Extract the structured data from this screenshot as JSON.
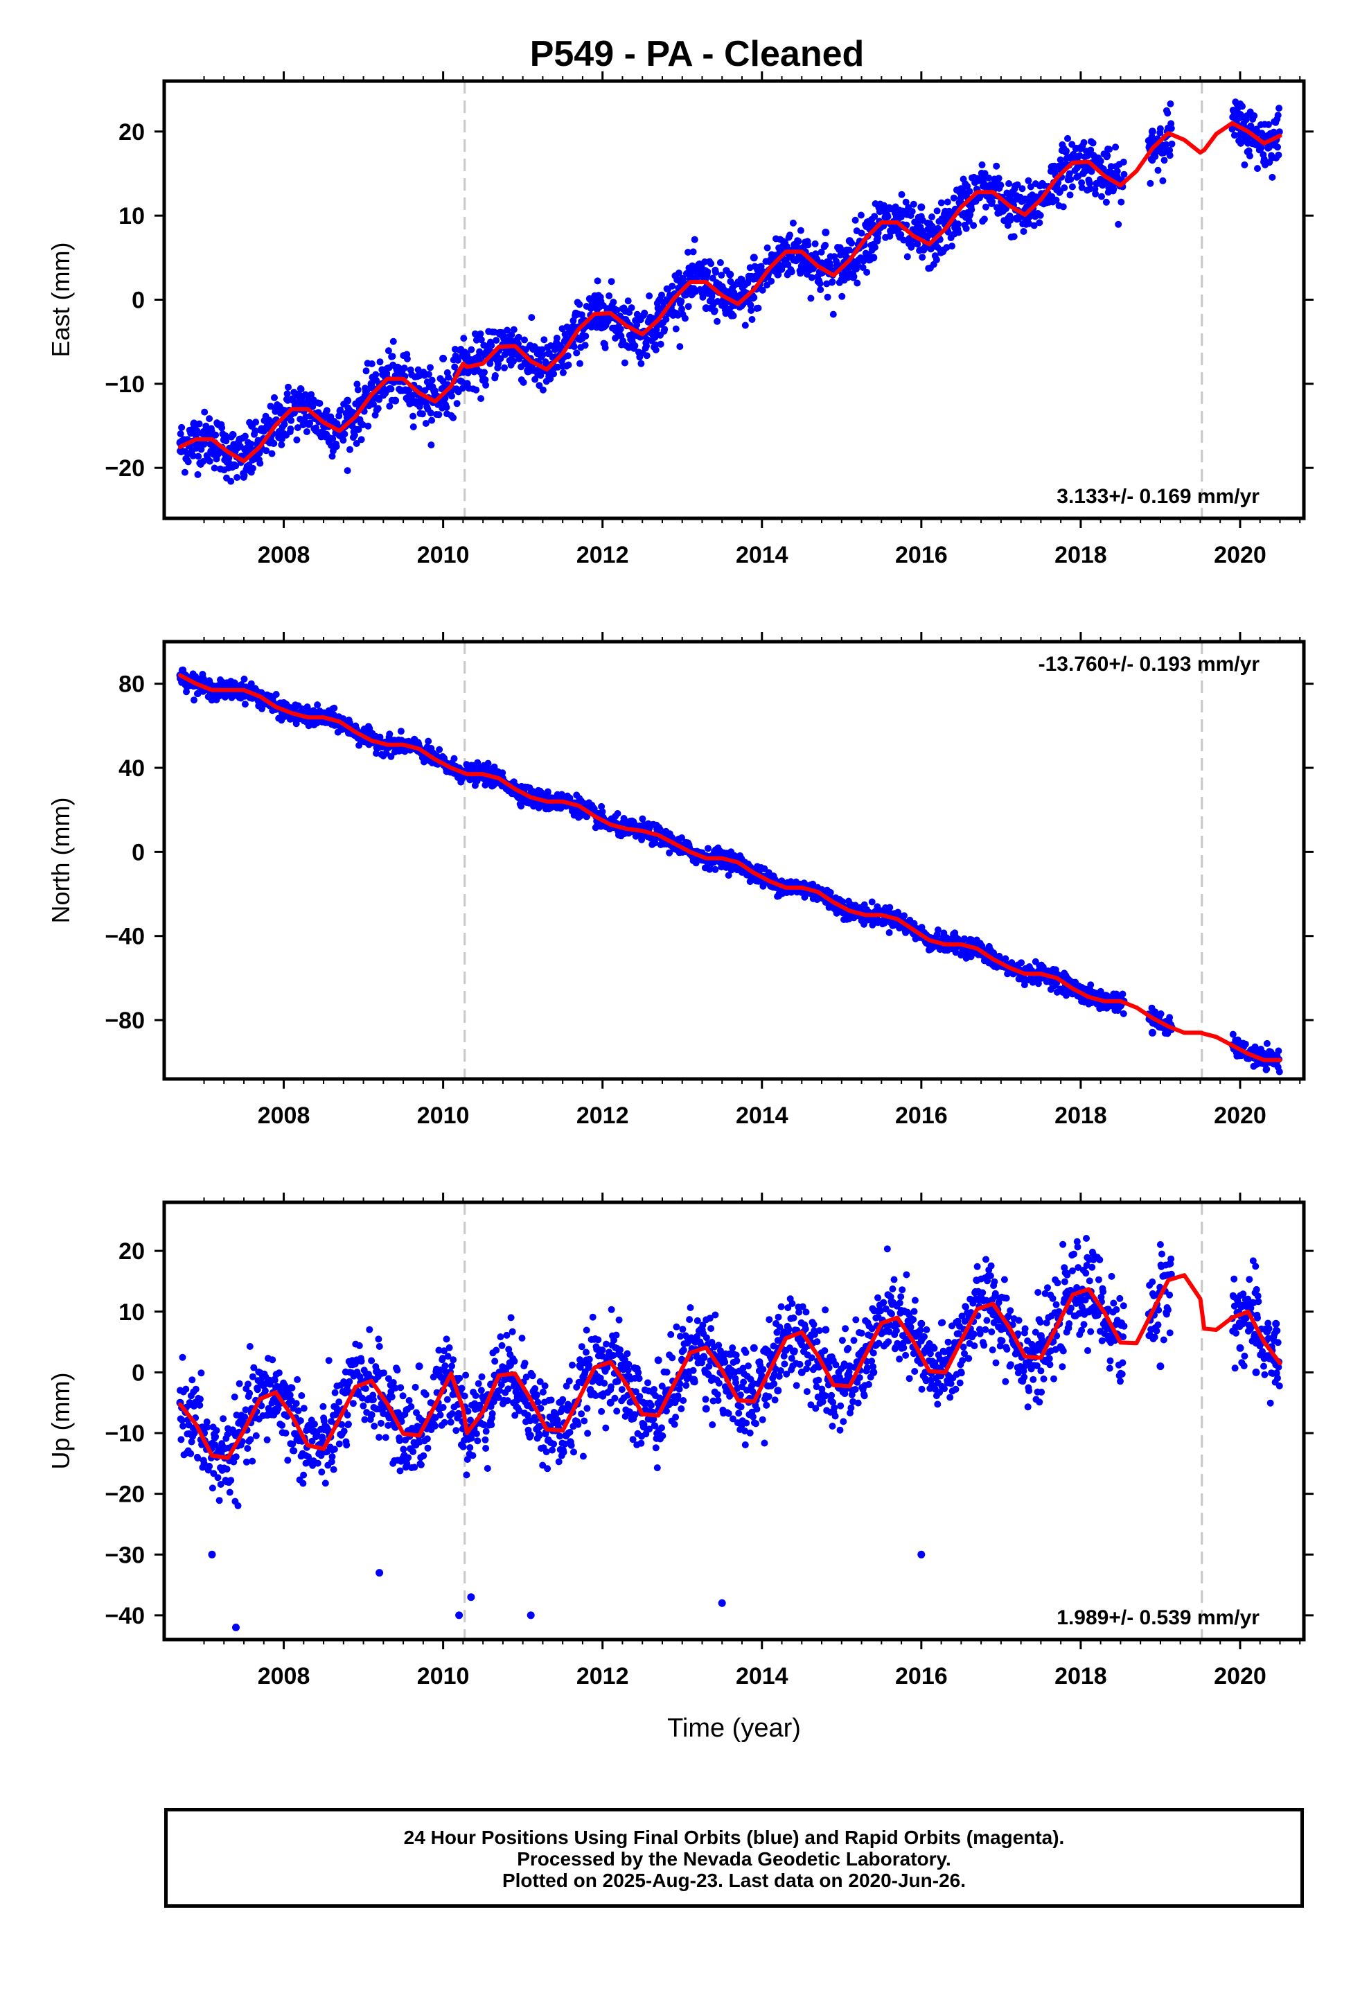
{
  "page_title": "P549  - PA - Cleaned",
  "footer": {
    "line1": "24 Hour Positions Using Final Orbits (blue) and Rapid Orbits (magenta).",
    "line2": "Processed by the Nevada Geodetic Laboratory.",
    "line3": "Plotted on 2025-Aug-23. Last data on 2020-Jun-26."
  },
  "colors": {
    "data_points": "#0000ff",
    "model_fit": "#ff0000",
    "equipment_change_lines": "#c8c8c8",
    "frame": "#000000"
  },
  "chart_data": [
    {
      "type": "scatter",
      "title": "P549  - PA - Cleaned",
      "ylabel": "East (mm)",
      "xlabel": "",
      "xlim": [
        2006.5,
        2020.8
      ],
      "ylim": [
        -26,
        26
      ],
      "x_ticks": [
        "2008",
        "2010",
        "2012",
        "2014",
        "2016",
        "2018",
        "2020"
      ],
      "y_ticks": [
        "20",
        "10",
        "0",
        "−10",
        "−20"
      ],
      "y_tick_values": [
        20,
        10,
        0,
        -10,
        -20
      ],
      "rate_label": "3.133+/- 0.169 mm/yr",
      "rate_label_position": "bottom-right",
      "vertical_dashed_lines_x": [
        2010.27,
        2019.52
      ],
      "series": [
        {
          "values": {
            "x": [
              2006.7,
              2007.0,
              2007.3,
              2007.6,
              2007.9,
              2008.2,
              2008.5,
              2008.8,
              2009.1,
              2009.4,
              2009.7,
              2010.0,
              2010.3,
              2010.6,
              2010.9,
              2011.2,
              2011.5,
              2011.8,
              2012.1,
              2012.4,
              2012.7,
              2013.0,
              2013.3,
              2013.6,
              2013.9,
              2014.2,
              2014.5,
              2014.8,
              2015.1,
              2015.4,
              2015.7,
              2016.0,
              2016.3,
              2016.6,
              2016.9,
              2017.2,
              2017.5,
              2017.8,
              2018.1,
              2018.4,
              2018.9,
              2020.0,
              2020.2,
              2020.45
            ],
            "y": [
              -17,
              -17,
              -19,
              -15,
              -13,
              -13,
              -16,
              -12,
              -10,
              -12,
              -9,
              -7,
              -10,
              -7,
              -5,
              -6,
              -6,
              -3,
              -2,
              -4,
              -1,
              1,
              -1,
              3,
              5,
              3,
              4,
              8,
              7,
              5,
              9,
              11,
              9,
              10,
              13,
              12,
              12,
              16,
              16,
              15,
              20,
              22,
              20,
              19
            ]
          }
        },
        {
          "name": "",
          "model": {
            "x": [
              2006.7,
              2006.9,
              2007.1,
              2007.3,
              2007.5,
              2007.7,
              2007.9,
              2008.1,
              2008.3,
              2008.5,
              2008.7,
              2008.9,
              2009.1,
              2009.3,
              2009.5,
              2009.7,
              2009.9,
              2010.1,
              2010.25,
              2010.3,
              2010.5,
              2010.7,
              2010.9,
              2011.1,
              2011.3,
              2011.5,
              2011.7,
              2011.9,
              2012.1,
              2012.3,
              2012.5,
              2012.7,
              2012.9,
              2013.1,
              2013.3,
              2013.5,
              2013.7,
              2013.9,
              2014.1,
              2014.3,
              2014.5,
              2014.7,
              2014.9,
              2015.1,
              2015.3,
              2015.5,
              2015.7,
              2015.9,
              2016.1,
              2016.3,
              2016.5,
              2016.7,
              2016.9,
              2017.1,
              2017.3,
              2017.5,
              2017.7,
              2017.9,
              2018.1,
              2018.3,
              2018.5,
              2018.7,
              2018.9,
              2019.1,
              2019.3,
              2019.5,
              2019.55,
              2019.7,
              2019.9,
              2020.1,
              2020.3,
              2020.5
            ],
            "y": [
              -17.5,
              -16.6,
              -16.6,
              -18.1,
              -19.2,
              -17.5,
              -14.9,
              -13.0,
              -13.0,
              -14.6,
              -15.6,
              -13.9,
              -11.3,
              -9.4,
              -9.4,
              -11.1,
              -12.1,
              -10.3,
              -7.6,
              -8.0,
              -7.6,
              -5.6,
              -5.5,
              -7.3,
              -8.3,
              -6.4,
              -3.5,
              -1.7,
              -1.6,
              -3.1,
              -4.1,
              -2.4,
              0.2,
              2.1,
              2.1,
              0.5,
              -0.5,
              1.2,
              3.8,
              5.7,
              5.7,
              4.0,
              2.9,
              4.7,
              7.3,
              9.2,
              9.2,
              7.6,
              6.6,
              8.4,
              11.0,
              12.8,
              12.8,
              11.2,
              10.1,
              11.9,
              14.5,
              16.3,
              16.4,
              14.7,
              13.6,
              15.3,
              18.0,
              19.8,
              19.0,
              17.5,
              17.8,
              19.7,
              21.0,
              20.0,
              18.6,
              19.5
            ]
          }
        }
      ]
    },
    {
      "type": "scatter",
      "ylabel": "North (mm)",
      "xlabel": "",
      "xlim": [
        2006.5,
        2020.8
      ],
      "ylim": [
        -108,
        100
      ],
      "x_ticks": [
        "2008",
        "2010",
        "2012",
        "2014",
        "2016",
        "2018",
        "2020"
      ],
      "y_ticks": [
        "80",
        "40",
        "0",
        "−40",
        "−80"
      ],
      "y_tick_values": [
        80,
        40,
        0,
        -40,
        -80
      ],
      "rate_label": "-13.760+/- 0.193 mm/yr",
      "rate_label_position": "top-right",
      "vertical_dashed_lines_x": [
        2010.27,
        2019.52
      ],
      "series": [
        {
          "values": {
            "x": [
              2006.7,
              2007.0,
              2007.3,
              2007.6,
              2007.9,
              2008.2,
              2008.5,
              2008.8,
              2009.1,
              2009.4,
              2009.7,
              2010.0,
              2010.3,
              2010.6,
              2010.9,
              2011.2,
              2011.5,
              2011.8,
              2012.1,
              2012.4,
              2012.7,
              2013.0,
              2013.3,
              2013.6,
              2013.9,
              2014.2,
              2014.5,
              2014.8,
              2015.1,
              2015.4,
              2015.7,
              2016.0,
              2016.3,
              2016.6,
              2016.9,
              2017.2,
              2017.5,
              2017.8,
              2018.1,
              2018.4,
              2018.9,
              2020.0,
              2020.2,
              2020.45
            ],
            "y": [
              84,
              80,
              78,
              76,
              70,
              65,
              63,
              58,
              52,
              51,
              48,
              42,
              37,
              34,
              28,
              24,
              22,
              17,
              12,
              11,
              7,
              0,
              -2,
              -5,
              -10,
              -17,
              -18,
              -22,
              -28,
              -32,
              -34,
              -40,
              -44,
              -46,
              -52,
              -57,
              -58,
              -65,
              -71,
              -73,
              -86,
              -92,
              -97,
              -97
            ]
          }
        },
        {
          "name": "",
          "model": {
            "x": [
              2006.7,
              2006.9,
              2007.1,
              2007.3,
              2007.5,
              2007.7,
              2007.9,
              2008.1,
              2008.3,
              2008.5,
              2008.7,
              2008.9,
              2009.1,
              2009.3,
              2009.5,
              2009.7,
              2009.9,
              2010.1,
              2010.3,
              2010.5,
              2010.7,
              2010.9,
              2011.1,
              2011.3,
              2011.5,
              2011.7,
              2011.9,
              2012.1,
              2012.3,
              2012.5,
              2012.7,
              2012.9,
              2013.1,
              2013.3,
              2013.5,
              2013.7,
              2013.9,
              2014.1,
              2014.3,
              2014.5,
              2014.7,
              2014.9,
              2015.1,
              2015.3,
              2015.5,
              2015.7,
              2015.9,
              2016.1,
              2016.3,
              2016.5,
              2016.7,
              2016.9,
              2017.1,
              2017.3,
              2017.5,
              2017.7,
              2017.9,
              2018.1,
              2018.3,
              2018.5,
              2018.7,
              2018.9,
              2019.1,
              2019.3,
              2019.5,
              2019.7,
              2019.9,
              2020.1,
              2020.3,
              2020.5
            ],
            "y": [
              84,
              80,
              77,
              77,
              77,
              74,
              69,
              66,
              64,
              64,
              62,
              57,
              53,
              51,
              51,
              49,
              44,
              40,
              37,
              37,
              35,
              30,
              26,
              24,
              24,
              22,
              17,
              13,
              11,
              10,
              8,
              4,
              0,
              -3,
              -3,
              -5,
              -10,
              -14,
              -17,
              -17,
              -19,
              -24,
              -28,
              -30,
              -30,
              -32,
              -37,
              -42,
              -44,
              -44,
              -46,
              -51,
              -55,
              -58,
              -58,
              -60,
              -65,
              -69,
              -71,
              -71,
              -74,
              -79,
              -83,
              -86,
              -86,
              -88,
              -92,
              -96,
              -99,
              -99
            ]
          }
        }
      ]
    },
    {
      "type": "scatter",
      "ylabel": "Up (mm)",
      "xlabel": "Time (year)",
      "xlim": [
        2006.5,
        2020.8
      ],
      "ylim": [
        -44,
        28
      ],
      "x_ticks": [
        "2008",
        "2010",
        "2012",
        "2014",
        "2016",
        "2018",
        "2020"
      ],
      "y_ticks": [
        "20",
        "10",
        "0",
        "−10",
        "−20",
        "−30",
        "−40"
      ],
      "y_tick_values": [
        20,
        10,
        0,
        -10,
        -20,
        -30,
        -40
      ],
      "rate_label": "1.989+/- 0.539 mm/yr",
      "rate_label_position": "bottom-right",
      "vertical_dashed_lines_x": [
        2010.27,
        2019.52
      ],
      "series": [
        {
          "values": {
            "x": [
              2006.7,
              2007.0,
              2007.3,
              2007.6,
              2007.9,
              2008.2,
              2008.5,
              2008.8,
              2009.1,
              2009.4,
              2009.7,
              2010.0,
              2010.3,
              2010.6,
              2010.9,
              2011.2,
              2011.5,
              2011.8,
              2012.1,
              2012.4,
              2012.7,
              2013.0,
              2013.3,
              2013.6,
              2013.9,
              2014.2,
              2014.5,
              2014.8,
              2015.1,
              2015.4,
              2015.7,
              2016.0,
              2016.3,
              2016.6,
              2016.9,
              2017.2,
              2017.5,
              2017.8,
              2018.1,
              2018.4,
              2019.0,
              2020.0,
              2020.2,
              2020.45,
              2007.1,
              2007.4,
              2009.2,
              2010.2,
              2010.35,
              2011.1,
              2013.5,
              2016.0
            ],
            "y": [
              -5,
              -10,
              -14,
              -6,
              -4,
              -11,
              -12,
              -2,
              -7,
              -9,
              1,
              -3,
              -9,
              -2,
              -2,
              -9,
              -6,
              2,
              -5,
              -7,
              2,
              2,
              -6,
              3,
              4,
              -3,
              0,
              7,
              1,
              0,
              8,
              8,
              2,
              9,
              10,
              4,
              6,
              12,
              10,
              6,
              1,
              4,
              0,
              8,
              -30,
              -42,
              -33,
              -40,
              -37,
              -40,
              -38,
              -30
            ]
          }
        },
        {
          "name": "",
          "model": {
            "x": [
              2006.7,
              2006.9,
              2007.1,
              2007.3,
              2007.5,
              2007.7,
              2007.9,
              2008.1,
              2008.3,
              2008.5,
              2008.7,
              2008.9,
              2009.1,
              2009.3,
              2009.5,
              2009.7,
              2009.9,
              2010.1,
              2010.25,
              2010.3,
              2010.5,
              2010.7,
              2010.9,
              2011.1,
              2011.3,
              2011.5,
              2011.7,
              2011.9,
              2012.1,
              2012.3,
              2012.5,
              2012.7,
              2012.9,
              2013.1,
              2013.3,
              2013.5,
              2013.7,
              2013.9,
              2014.1,
              2014.3,
              2014.5,
              2014.7,
              2014.9,
              2015.1,
              2015.3,
              2015.5,
              2015.7,
              2015.9,
              2016.1,
              2016.3,
              2016.5,
              2016.7,
              2016.9,
              2017.1,
              2017.3,
              2017.5,
              2017.7,
              2017.9,
              2018.1,
              2018.3,
              2018.5,
              2018.7,
              2018.9,
              2019.1,
              2019.3,
              2019.5,
              2019.55,
              2019.7,
              2019.9,
              2020.1,
              2020.3,
              2020.5
            ],
            "y": [
              -5.3,
              -8.6,
              -13.7,
              -14.1,
              -9.6,
              -4.4,
              -3.3,
              -7.1,
              -12.0,
              -12.6,
              -7.6,
              -2.4,
              -1.4,
              -5.2,
              -10.1,
              -10.4,
              -5.4,
              -0.2,
              -6.0,
              -10.0,
              -6.5,
              -0.5,
              -0.2,
              -4.5,
              -9.4,
              -9.6,
              -4.4,
              0.8,
              1.7,
              -2.0,
              -6.9,
              -7.1,
              -1.9,
              3.2,
              4.1,
              0.3,
              -4.6,
              -4.8,
              0.4,
              5.6,
              6.6,
              2.8,
              -2.1,
              -2.3,
              2.9,
              8.1,
              9.0,
              5.1,
              0.2,
              0.0,
              5.2,
              10.4,
              11.3,
              7.5,
              2.6,
              2.4,
              7.6,
              12.8,
              13.7,
              9.8,
              4.9,
              4.8,
              10.0,
              15.2,
              16.0,
              12.1,
              7.2,
              7.0,
              9.0,
              10.0,
              5.0,
              1.5
            ]
          }
        }
      ]
    }
  ]
}
